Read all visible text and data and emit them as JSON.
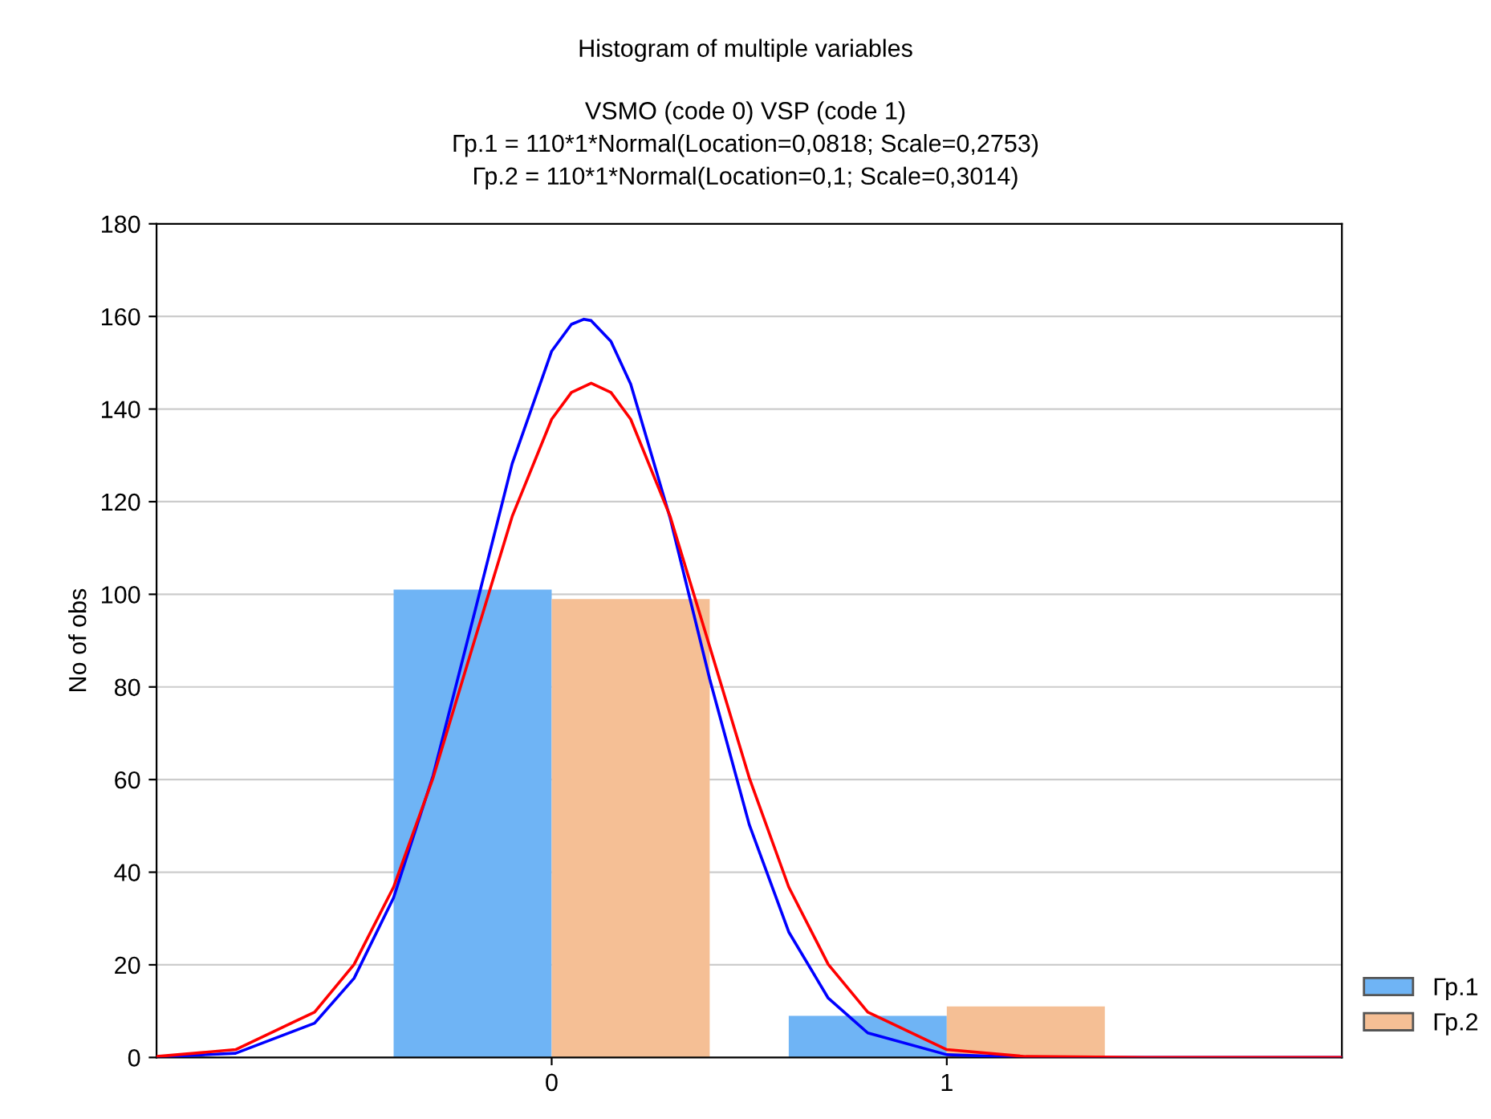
{
  "chart_data": {
    "type": "bar",
    "title": "Histogram of multiple variables",
    "subtitle": "VSMO (code 0) VSP (code 1)\nГр.1 = 110*1*Normal(Location=0,0818; Scale=0,2753)\nГр.2 = 110*1*Normal(Location=0,1; Scale=0,3014)",
    "ylabel": "No of obs",
    "x": [
      0,
      1
    ],
    "series": [
      {
        "name": "Гр.1",
        "color": "#6fb4f5",
        "values": [
          101,
          9
        ]
      },
      {
        "name": "Гр.2",
        "color": "#f5bf95",
        "values": [
          99,
          11
        ]
      },
      {
        "type": "line",
        "color": "#0000ff",
        "x": [
          -1,
          -0.8,
          -0.6,
          -0.5,
          -0.4,
          -0.3,
          -0.2,
          -0.1,
          0,
          0.05,
          0.0818,
          0.1,
          0.15,
          0.2,
          0.3,
          0.4,
          0.5,
          0.6,
          0.7,
          0.8,
          1.0,
          1.2,
          1.5,
          2
        ],
        "values": [
          0.1,
          0.9,
          7.4,
          17.1,
          34.5,
          60.9,
          94.4,
          128.2,
          152.5,
          158.3,
          159.4,
          159.1,
          154.6,
          145.4,
          116.4,
          81.7,
          50.3,
          27.1,
          12.8,
          5.3,
          0.6,
          0,
          0,
          0
        ]
      },
      {
        "type": "line",
        "color": "#ff0000",
        "x": [
          -1,
          -0.8,
          -0.6,
          -0.5,
          -0.4,
          -0.3,
          -0.2,
          -0.1,
          0,
          0.05,
          0.1,
          0.15,
          0.2,
          0.3,
          0.4,
          0.5,
          0.6,
          0.7,
          0.8,
          1.0,
          1.2,
          1.5,
          2
        ],
        "values": [
          0.2,
          1.7,
          9.8,
          20.1,
          36.8,
          60.4,
          88.7,
          116.8,
          137.8,
          143.6,
          145.6,
          143.6,
          137.8,
          116.8,
          88.7,
          60.4,
          36.8,
          20.1,
          9.8,
          1.7,
          0.2,
          0,
          0
        ]
      }
    ],
    "xlim": [
      -1,
      2
    ],
    "xticks": [
      0,
      1
    ],
    "ylim": [
      0,
      180
    ],
    "yticks": [
      0,
      20,
      40,
      60,
      80,
      100,
      120,
      140,
      160,
      180
    ],
    "grid": "y",
    "legend": "bottom right",
    "marker": "none",
    "line_style": "solid"
  }
}
